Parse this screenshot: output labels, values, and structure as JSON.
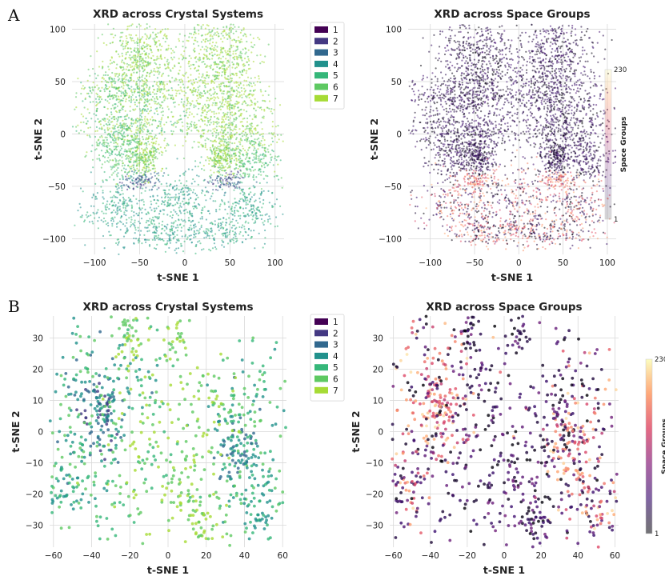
{
  "panel_letters": [
    "A",
    "B"
  ],
  "colors": {
    "crystal_systems": [
      "#440154",
      "#443983",
      "#31688e",
      "#21918c",
      "#35b779",
      "#5ec962",
      "#a6db35"
    ],
    "space_groups_magma": [
      "#000004",
      "#3b0f70",
      "#8c2981",
      "#de4968",
      "#fe9f6d",
      "#fcfdbf"
    ]
  },
  "chart_data": [
    {
      "id": "A-left",
      "type": "scatter",
      "title": "XRD across Crystal Systems",
      "xlabel": "t-SNE 1",
      "ylabel": "t-SNE 2",
      "xticks": [
        -100,
        -50,
        0,
        50,
        100
      ],
      "yticks": [
        100,
        50,
        0,
        -50,
        -100
      ],
      "xlim": [
        -125,
        110
      ],
      "ylim": [
        -115,
        105
      ],
      "grid": true,
      "legend": {
        "placement": "right",
        "entries": [
          "1",
          "2",
          "3",
          "4",
          "5",
          "6",
          "7"
        ]
      },
      "color_by": "crystal_system",
      "point_count_hint": "dense (~thousands)"
    },
    {
      "id": "A-right",
      "type": "scatter",
      "title": "XRD across Space Groups",
      "xlabel": "t-SNE 1",
      "ylabel": "t-SNE 2",
      "xticks": [
        -100,
        -50,
        0,
        50,
        100
      ],
      "yticks": [
        100,
        50,
        0,
        -50,
        -100
      ],
      "xlim": [
        -125,
        110
      ],
      "ylim": [
        -115,
        105
      ],
      "grid": true,
      "colorbar": {
        "label": "Space Groups",
        "min": "1",
        "max": "230",
        "colormap": "magma-light"
      },
      "color_by": "space_group"
    },
    {
      "id": "B-left",
      "type": "scatter",
      "title": "XRD across Crystal Systems",
      "xlabel": "t-SNE 1",
      "ylabel": "t-SNE 2",
      "xticks": [
        -60,
        -40,
        -20,
        0,
        20,
        40,
        60
      ],
      "yticks": [
        30,
        20,
        10,
        0,
        -10,
        -20,
        -30
      ],
      "xlim": [
        -62,
        62
      ],
      "ylim": [
        -37,
        37
      ],
      "grid": true,
      "legend": {
        "placement": "right",
        "entries": [
          "1",
          "2",
          "3",
          "4",
          "5",
          "6",
          "7"
        ]
      },
      "color_by": "crystal_system"
    },
    {
      "id": "B-right",
      "type": "scatter",
      "title": "XRD across Space Groups",
      "xlabel": "t-SNE 1",
      "ylabel": "t-SNE 2",
      "xticks": [
        -60,
        -40,
        -20,
        0,
        20,
        40,
        60
      ],
      "yticks": [
        30,
        20,
        10,
        0,
        -10,
        -20,
        -30
      ],
      "xlim": [
        -62,
        62
      ],
      "ylim": [
        -37,
        37
      ],
      "grid": true,
      "colorbar": {
        "label": "Space Groups",
        "min": "1",
        "max": "230",
        "colormap": "magma"
      },
      "color_by": "space_group"
    }
  ]
}
